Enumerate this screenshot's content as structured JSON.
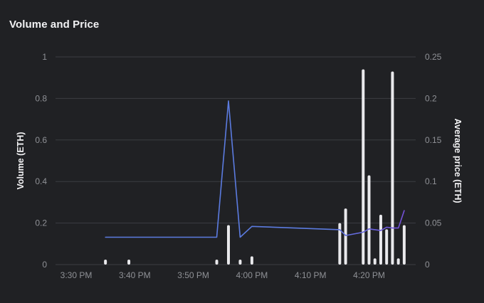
{
  "panel": {
    "title": "Volume and Price"
  },
  "chart_data": {
    "type": "bar",
    "title": "Volume and Price",
    "x_ticks": [
      "3:30 PM",
      "3:40 PM",
      "3:50 PM",
      "4:00 PM",
      "4:10 PM",
      "4:20 PM"
    ],
    "y_left": {
      "label": "Volume (ETH)",
      "lim": [
        0,
        1
      ],
      "ticks": [
        "0",
        "0.2",
        "0.4",
        "0.6",
        "0.8",
        "1"
      ],
      "tick_values": [
        0,
        0.2,
        0.4,
        0.6,
        0.8,
        1
      ]
    },
    "y_right": {
      "label": "Average price (ETH)",
      "lim": [
        0,
        0.25
      ],
      "ticks": [
        "0",
        "0.05",
        "0.1",
        "0.15",
        "0.2",
        "0.25"
      ],
      "tick_values": [
        0,
        0.05,
        0.1,
        0.15,
        0.2,
        0.25
      ]
    },
    "grid": true,
    "colors": {
      "volume_bars": "#e9e9ec",
      "price_line": "#5b7be0",
      "price_line_end": "#7450d8",
      "grid": "#3b3d42",
      "background": "#202124"
    },
    "volume_bars": [
      {
        "time": "3:35 PM",
        "volume": 0.02
      },
      {
        "time": "3:39 PM",
        "volume": 0.02
      },
      {
        "time": "3:54 PM",
        "volume": 0.02
      },
      {
        "time": "3:56 PM",
        "volume": 0.19
      },
      {
        "time": "3:58 PM",
        "volume": 0.02
      },
      {
        "time": "4:00 PM",
        "volume": 0.04
      },
      {
        "time": "4:15 PM",
        "volume": 0.2
      },
      {
        "time": "4:16 PM",
        "volume": 0.27
      },
      {
        "time": "4:19 PM",
        "volume": 0.94
      },
      {
        "time": "4:20 PM",
        "volume": 0.43
      },
      {
        "time": "4:21 PM",
        "volume": 0.03
      },
      {
        "time": "4:22 PM",
        "volume": 0.24
      },
      {
        "time": "4:23 PM",
        "volume": 0.17
      },
      {
        "time": "4:24 PM",
        "volume": 0.93
      },
      {
        "time": "4:25 PM",
        "volume": 0.03
      },
      {
        "time": "4:26 PM",
        "volume": 0.19
      }
    ],
    "price_line": [
      {
        "time": "3:35 PM",
        "price": 0.033
      },
      {
        "time": "3:54 PM",
        "price": 0.033
      },
      {
        "time": "3:56 PM",
        "price": 0.197
      },
      {
        "time": "3:58 PM",
        "price": 0.033
      },
      {
        "time": "4:00 PM",
        "price": 0.046
      },
      {
        "time": "4:15 PM",
        "price": 0.042
      },
      {
        "time": "4:16 PM",
        "price": 0.035
      },
      {
        "time": "4:19 PM",
        "price": 0.039
      },
      {
        "time": "4:20 PM",
        "price": 0.043
      },
      {
        "time": "4:21 PM",
        "price": 0.042
      },
      {
        "time": "4:22 PM",
        "price": 0.041
      },
      {
        "time": "4:23 PM",
        "price": 0.045
      },
      {
        "time": "4:24 PM",
        "price": 0.044
      },
      {
        "time": "4:25 PM",
        "price": 0.044
      },
      {
        "time": "4:26 PM",
        "price": 0.065
      }
    ]
  }
}
